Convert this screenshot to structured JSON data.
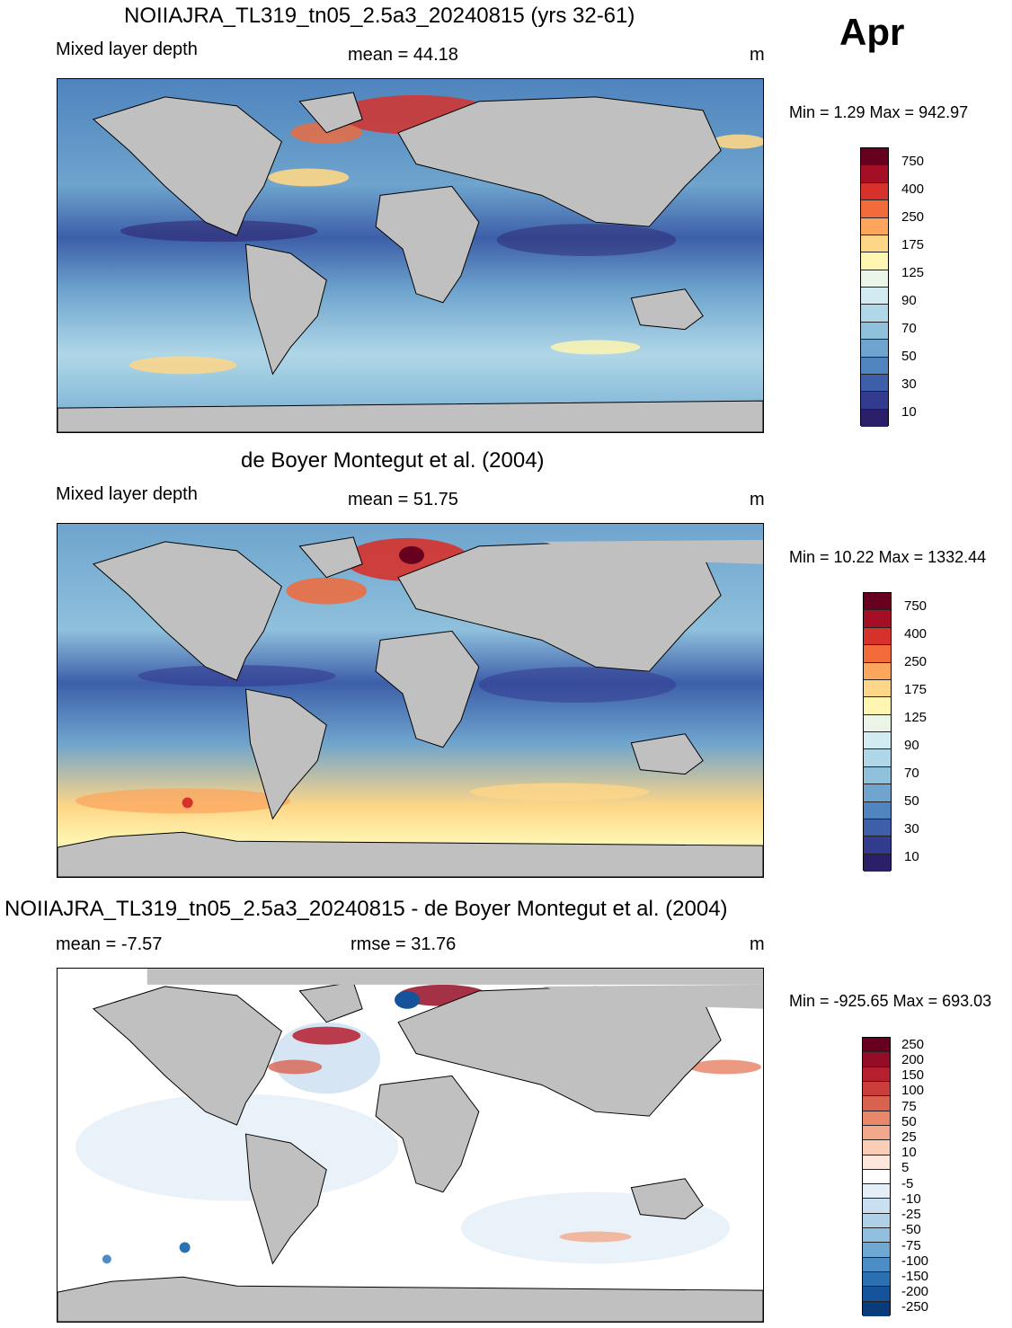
{
  "month": "Apr",
  "panels": [
    {
      "title": "NOIIAJRA_TL319_tn05_2.5a3_20240815 (yrs 32-61)",
      "left_label": "Mixed layer depth",
      "center_label": "mean =  44.18",
      "unit": "m",
      "minmax": "Min =   1.29 Max = 942.97",
      "colorbar": {
        "labels": [
          "750",
          "400",
          "250",
          "175",
          "125",
          "90",
          "70",
          "50",
          "30",
          "10"
        ],
        "colors": [
          "#67001f",
          "#a50f26",
          "#d6322b",
          "#f26a3a",
          "#fca55d",
          "#fed687",
          "#fef5b0",
          "#eaf5e8",
          "#d2ebf3",
          "#b0d7e8",
          "#8fc0dc",
          "#6ea4cd",
          "#4f84be",
          "#3d5fa9",
          "#333b8f",
          "#2b1f6a"
        ]
      }
    },
    {
      "title": "de Boyer Montegut et al. (2004)",
      "left_label": "Mixed layer depth",
      "center_label": "mean =  51.75",
      "unit": "m",
      "minmax": "Min =  10.22 Max = 1332.44",
      "colorbar": {
        "labels": [
          "750",
          "400",
          "250",
          "175",
          "125",
          "90",
          "70",
          "50",
          "30",
          "10"
        ],
        "colors": [
          "#67001f",
          "#a50f26",
          "#d6322b",
          "#f26a3a",
          "#fca55d",
          "#fed687",
          "#fef5b0",
          "#eaf5e8",
          "#d2ebf3",
          "#b0d7e8",
          "#8fc0dc",
          "#6ea4cd",
          "#4f84be",
          "#3d5fa9",
          "#333b8f",
          "#2b1f6a"
        ]
      }
    },
    {
      "title": "NOIIAJRA_TL319_tn05_2.5a3_20240815 - de Boyer Montegut et al. (2004)",
      "left_label": "mean =  -7.57",
      "center_label": "rmse =  31.76",
      "unit": "m",
      "minmax": "Min = -925.65 Max = 693.03",
      "colorbar": {
        "labels": [
          "250",
          "200",
          "150",
          "100",
          "75",
          "50",
          "25",
          "10",
          "5",
          "-5",
          "-10",
          "-25",
          "-50",
          "-75",
          "-100",
          "-150",
          "-200",
          "-250"
        ],
        "colors": [
          "#67001f",
          "#940d26",
          "#b51f2e",
          "#cc3e3c",
          "#d9614f",
          "#e8876a",
          "#f2a98b",
          "#f9cdb6",
          "#fde7dc",
          "#ffffff",
          "#e3eef7",
          "#cadff0",
          "#b0d0e8",
          "#91bfdf",
          "#6ea8d3",
          "#4b8dc4",
          "#2b70b0",
          "#15549a",
          "#083b7a"
        ]
      }
    }
  ]
}
